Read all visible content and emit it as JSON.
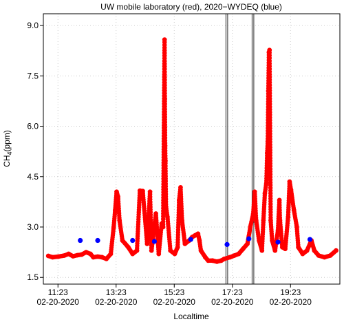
{
  "chart_data": {
    "type": "scatter",
    "title": "UW mobile laboratory (red), 2020−WYDEQ (blue)",
    "xlabel": "Localtime",
    "ylabel": "CH",
    "ylabel_sub": "4",
    "ylabel_unit": "(ppm)",
    "x_ticks": [
      {
        "time": "11:23",
        "date": "02-20-2020",
        "hour": 11.383
      },
      {
        "time": "13:23",
        "date": "02-20-2020",
        "hour": 13.383
      },
      {
        "time": "15:23",
        "date": "02-20-2020",
        "hour": 15.383
      },
      {
        "time": "17:23",
        "date": "02-20-2020",
        "hour": 17.383
      },
      {
        "time": "19:23",
        "date": "02-20-2020",
        "hour": 19.383
      }
    ],
    "xlim": [
      10.88,
      21.08
    ],
    "ylim": [
      1.3,
      9.35
    ],
    "y_ticks": [
      "1.5",
      "3.0",
      "4.5",
      "6.0",
      "7.5",
      "9.0"
    ],
    "grid": true,
    "vertical_bands": [
      [
        17.16,
        17.22
      ],
      [
        18.06,
        18.12
      ]
    ],
    "series": [
      {
        "color": "#ff0000",
        "values": [
          [
            11.05,
            2.14
          ],
          [
            11.2,
            2.1
          ],
          [
            11.4,
            2.12
          ],
          [
            11.6,
            2.15
          ],
          [
            11.75,
            2.2
          ],
          [
            11.9,
            2.13
          ],
          [
            12.05,
            2.16
          ],
          [
            12.2,
            2.18
          ],
          [
            12.35,
            2.25
          ],
          [
            12.5,
            2.2
          ],
          [
            12.6,
            2.1
          ],
          [
            12.75,
            2.12
          ],
          [
            12.9,
            2.1
          ],
          [
            13.05,
            2.05
          ],
          [
            13.2,
            2.2
          ],
          [
            13.3,
            3.0
          ],
          [
            13.35,
            3.5
          ],
          [
            13.4,
            4.05
          ],
          [
            13.45,
            3.9
          ],
          [
            13.5,
            3.2
          ],
          [
            13.6,
            2.6
          ],
          [
            13.8,
            2.4
          ],
          [
            13.95,
            2.2
          ],
          [
            14.1,
            2.3
          ],
          [
            14.2,
            4.08
          ],
          [
            14.3,
            4.07
          ],
          [
            14.45,
            2.5
          ],
          [
            14.55,
            4.05
          ],
          [
            14.6,
            2.3
          ],
          [
            14.75,
            3.4
          ],
          [
            14.85,
            2.2
          ],
          [
            14.95,
            3.1
          ],
          [
            15.0,
            3.0
          ],
          [
            15.05,
            8.58
          ],
          [
            15.06,
            6.82
          ],
          [
            15.07,
            5.42
          ],
          [
            15.08,
            4.97
          ],
          [
            15.1,
            3.6
          ],
          [
            15.15,
            3.3
          ],
          [
            15.25,
            2.3
          ],
          [
            15.4,
            2.2
          ],
          [
            15.5,
            2.4
          ],
          [
            15.55,
            3.8
          ],
          [
            15.6,
            4.18
          ],
          [
            15.65,
            3.2
          ],
          [
            15.75,
            2.5
          ],
          [
            15.9,
            2.6
          ],
          [
            16.0,
            2.7
          ],
          [
            16.1,
            2.75
          ],
          [
            16.2,
            2.8
          ],
          [
            16.25,
            2.6
          ],
          [
            16.3,
            2.3
          ],
          [
            16.45,
            2.1
          ],
          [
            16.55,
            2.0
          ],
          [
            16.7,
            2.0
          ],
          [
            16.85,
            1.97
          ],
          [
            17.0,
            2.0
          ],
          [
            17.1,
            2.05
          ],
          [
            17.3,
            2.1
          ],
          [
            17.45,
            2.15
          ],
          [
            17.6,
            2.2
          ],
          [
            17.75,
            2.35
          ],
          [
            17.9,
            2.5
          ],
          [
            18.0,
            3.0
          ],
          [
            18.1,
            3.4
          ],
          [
            18.15,
            4.05
          ],
          [
            18.2,
            3.2
          ],
          [
            18.3,
            2.6
          ],
          [
            18.4,
            2.3
          ],
          [
            18.45,
            3.2
          ],
          [
            18.5,
            4.0
          ],
          [
            18.55,
            4.3
          ],
          [
            18.58,
            5.2
          ],
          [
            18.6,
            5.55
          ],
          [
            18.62,
            7.05
          ],
          [
            18.64,
            8.2
          ],
          [
            18.66,
            8.27
          ],
          [
            18.7,
            3.2
          ],
          [
            18.75,
            2.6
          ],
          [
            18.85,
            2.3
          ],
          [
            18.95,
            2.9
          ],
          [
            19.0,
            3.8
          ],
          [
            19.02,
            3.2
          ],
          [
            19.1,
            2.4
          ],
          [
            19.2,
            2.35
          ],
          [
            19.3,
            3.3
          ],
          [
            19.35,
            4.35
          ],
          [
            19.4,
            4.1
          ],
          [
            19.5,
            3.5
          ],
          [
            19.6,
            3.0
          ],
          [
            19.65,
            2.4
          ],
          [
            19.8,
            2.2
          ],
          [
            19.95,
            2.3
          ],
          [
            20.1,
            2.6
          ],
          [
            20.2,
            2.3
          ],
          [
            20.35,
            2.15
          ],
          [
            20.55,
            2.1
          ],
          [
            20.75,
            2.15
          ],
          [
            20.95,
            2.3
          ]
        ]
      },
      {
        "color": "#0000ff",
        "values": [
          [
            12.15,
            2.6
          ],
          [
            12.75,
            2.6
          ],
          [
            13.95,
            2.6
          ],
          [
            14.7,
            2.57
          ],
          [
            15.95,
            2.63
          ],
          [
            17.2,
            2.48
          ],
          [
            17.95,
            2.65
          ],
          [
            18.95,
            2.55
          ],
          [
            20.05,
            2.63
          ]
        ]
      }
    ]
  }
}
